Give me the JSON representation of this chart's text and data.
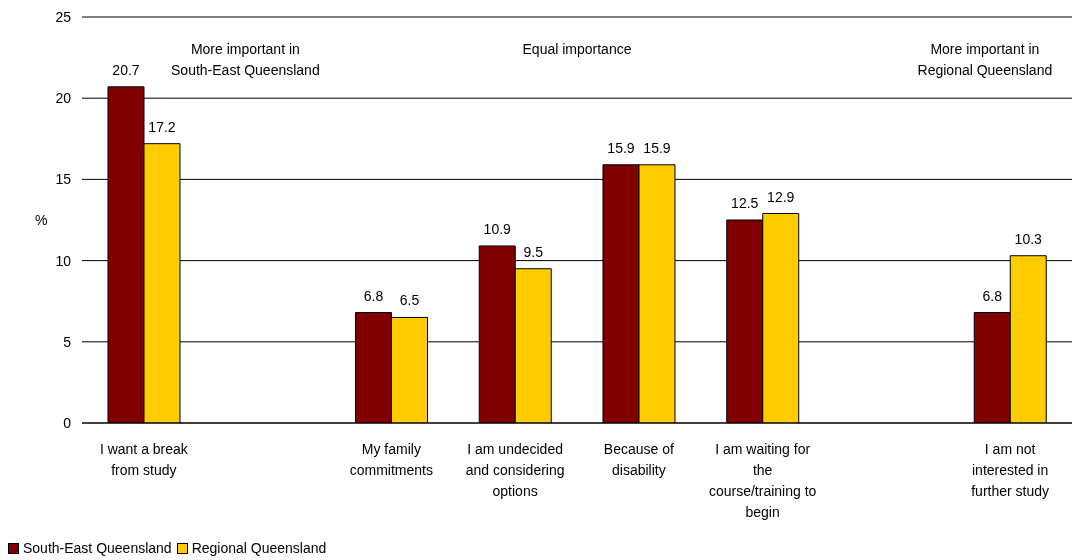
{
  "chart_data": {
    "type": "bar",
    "categories": [
      "I want a break from study",
      null,
      "My family commitments",
      "I am undecided and considering options",
      "Because of disability",
      "I am waiting for the course/training to begin",
      null,
      "I am not interested in further study"
    ],
    "series": [
      {
        "name": "South-East Queensland",
        "color": "#800000",
        "values": [
          20.7,
          null,
          6.8,
          10.9,
          15.9,
          12.5,
          null,
          6.8
        ]
      },
      {
        "name": "Regional Queensland",
        "color": "#ffcc00",
        "values": [
          17.2,
          null,
          6.5,
          9.5,
          15.9,
          12.9,
          null,
          10.3
        ]
      }
    ],
    "ylabel": "%",
    "ylim": [
      0,
      25
    ],
    "yticks": [
      0,
      5,
      10,
      15,
      20,
      25
    ],
    "grid": "y",
    "legend": "bottom left",
    "data_labels": true,
    "annotations": [
      "More important in South-East Queensland",
      "Equal importance",
      "More important in Regional Queensland"
    ]
  }
}
